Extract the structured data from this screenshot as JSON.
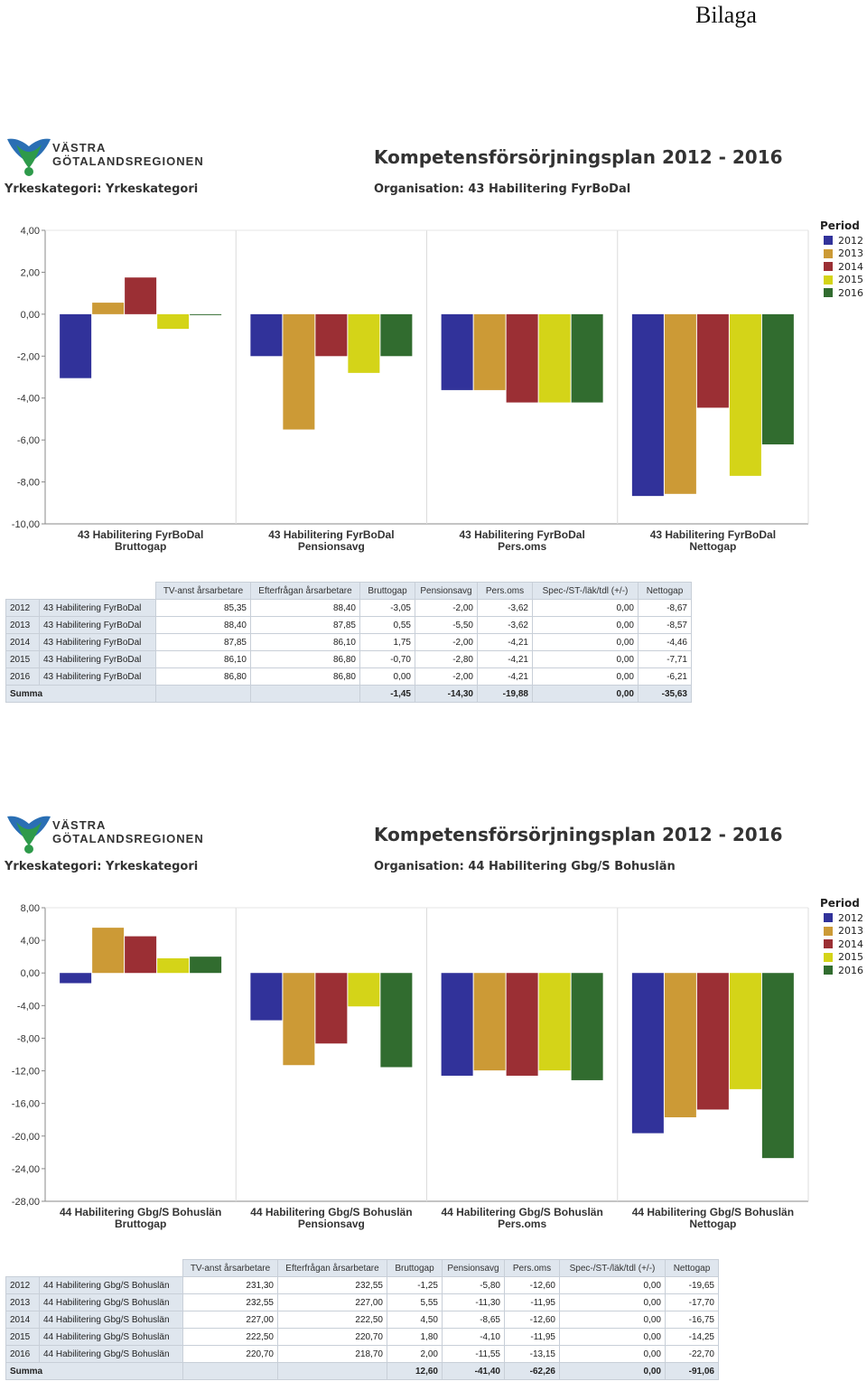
{
  "page": {
    "header": "Bilaga"
  },
  "legend": {
    "title": "Period",
    "items": [
      {
        "label": "2012",
        "color": "#31329a"
      },
      {
        "label": "2013",
        "color": "#cc9a36"
      },
      {
        "label": "2014",
        "color": "#9b2f34"
      },
      {
        "label": "2015",
        "color": "#d4d418"
      },
      {
        "label": "2016",
        "color": "#316c2f"
      }
    ]
  },
  "table_headers": [
    "TV-anst årsarbetare",
    "Efterfrågan årsarbetare",
    "Bruttogap",
    "Pensionsavg",
    "Pers.oms",
    "Spec-/ST-/läk/tdl (+/-)",
    "Nettogap"
  ],
  "sections": [
    {
      "logo_line1": "VÄSTRA",
      "logo_line2": "GÖTALANDSREGIONEN",
      "yrkeskategori": "Yrkeskategori: Yrkeskategori",
      "title": "Kompetensförsörjningsplan 2012 - 2016",
      "organisation": "Organisation: 43 Habilitering FyrBoDal",
      "chart_data": {
        "type": "bar",
        "categories": [
          {
            "line1": "43 Habilitering FyrBoDal",
            "line2": "Bruttogap"
          },
          {
            "line1": "43 Habilitering FyrBoDal",
            "line2": "Pensionsavg"
          },
          {
            "line1": "43 Habilitering FyrBoDal",
            "line2": "Pers.oms"
          },
          {
            "line1": "43 Habilitering FyrBoDal",
            "line2": "Nettogap"
          }
        ],
        "series": [
          {
            "name": "2012",
            "values": [
              -3.05,
              -2.0,
              -3.62,
              -8.67
            ]
          },
          {
            "name": "2013",
            "values": [
              0.55,
              -5.5,
              -3.62,
              -8.57
            ]
          },
          {
            "name": "2014",
            "values": [
              1.75,
              -2.0,
              -4.21,
              -4.46
            ]
          },
          {
            "name": "2015",
            "values": [
              -0.7,
              -2.8,
              -4.21,
              -7.71
            ]
          },
          {
            "name": "2016",
            "values": [
              0.0,
              -2.0,
              -4.21,
              -6.21
            ]
          }
        ],
        "ylim": [
          -10,
          4
        ],
        "yticks": [
          4,
          2,
          0,
          -2,
          -4,
          -6,
          -8,
          -10
        ],
        "ytick_labels": [
          "4,00",
          "2,00",
          "0,00",
          "-2,00",
          "-4,00",
          "-6,00",
          "-8,00",
          "-10,00"
        ],
        "grid": "vertical-separators",
        "legend_position": "right"
      },
      "table": {
        "rows": [
          [
            "2012",
            "43 Habilitering FyrBoDal",
            "85,35",
            "88,40",
            "-3,05",
            "-2,00",
            "-3,62",
            "0,00",
            "-8,67"
          ],
          [
            "2013",
            "43 Habilitering FyrBoDal",
            "88,40",
            "87,85",
            "0,55",
            "-5,50",
            "-3,62",
            "0,00",
            "-8,57"
          ],
          [
            "2014",
            "43 Habilitering FyrBoDal",
            "87,85",
            "86,10",
            "1,75",
            "-2,00",
            "-4,21",
            "0,00",
            "-4,46"
          ],
          [
            "2015",
            "43 Habilitering FyrBoDal",
            "86,10",
            "86,80",
            "-0,70",
            "-2,80",
            "-4,21",
            "0,00",
            "-7,71"
          ],
          [
            "2016",
            "43 Habilitering FyrBoDal",
            "86,80",
            "86,80",
            "0,00",
            "-2,00",
            "-4,21",
            "0,00",
            "-6,21"
          ]
        ],
        "sum_label": "Summa",
        "sum": [
          "",
          "",
          "-1,45",
          "-14,30",
          "-19,88",
          "0,00",
          "-35,63"
        ]
      }
    },
    {
      "logo_line1": "VÄSTRA",
      "logo_line2": "GÖTALANDSREGIONEN",
      "yrkeskategori": "Yrkeskategori: Yrkeskategori",
      "title": "Kompetensförsörjningsplan 2012 - 2016",
      "organisation": "Organisation: 44 Habilitering Gbg/S Bohuslän",
      "chart_data": {
        "type": "bar",
        "categories": [
          {
            "line1": "44 Habilitering Gbg/S Bohuslän",
            "line2": "Bruttogap"
          },
          {
            "line1": "44 Habilitering Gbg/S Bohuslän",
            "line2": "Pensionsavg"
          },
          {
            "line1": "44 Habilitering Gbg/S Bohuslän",
            "line2": "Pers.oms"
          },
          {
            "line1": "44 Habilitering Gbg/S Bohuslän",
            "line2": "Nettogap"
          }
        ],
        "series": [
          {
            "name": "2012",
            "values": [
              -1.25,
              -5.8,
              -12.6,
              -19.65
            ]
          },
          {
            "name": "2013",
            "values": [
              5.55,
              -11.3,
              -11.95,
              -17.7
            ]
          },
          {
            "name": "2014",
            "values": [
              4.5,
              -8.65,
              -12.6,
              -16.75
            ]
          },
          {
            "name": "2015",
            "values": [
              1.8,
              -4.1,
              -11.95,
              -14.25
            ]
          },
          {
            "name": "2016",
            "values": [
              2.0,
              -11.55,
              -13.15,
              -22.7
            ]
          }
        ],
        "ylim": [
          -28,
          8
        ],
        "yticks": [
          8,
          4,
          0,
          -4,
          -8,
          -12,
          -16,
          -20,
          -24,
          -28
        ],
        "ytick_labels": [
          "8,00",
          "4,00",
          "0,00",
          "-4,00",
          "-8,00",
          "-12,00",
          "-16,00",
          "-20,00",
          "-24,00",
          "-28,00"
        ],
        "grid": "vertical-separators",
        "legend_position": "right"
      },
      "table": {
        "rows": [
          [
            "2012",
            "44 Habilitering Gbg/S Bohuslän",
            "231,30",
            "232,55",
            "-1,25",
            "-5,80",
            "-12,60",
            "0,00",
            "-19,65"
          ],
          [
            "2013",
            "44 Habilitering Gbg/S Bohuslän",
            "232,55",
            "227,00",
            "5,55",
            "-11,30",
            "-11,95",
            "0,00",
            "-17,70"
          ],
          [
            "2014",
            "44 Habilitering Gbg/S Bohuslän",
            "227,00",
            "222,50",
            "4,50",
            "-8,65",
            "-12,60",
            "0,00",
            "-16,75"
          ],
          [
            "2015",
            "44 Habilitering Gbg/S Bohuslän",
            "222,50",
            "220,70",
            "1,80",
            "-4,10",
            "-11,95",
            "0,00",
            "-14,25"
          ],
          [
            "2016",
            "44 Habilitering Gbg/S Bohuslän",
            "220,70",
            "218,70",
            "2,00",
            "-11,55",
            "-13,15",
            "0,00",
            "-22,70"
          ]
        ],
        "sum_label": "Summa",
        "sum": [
          "",
          "",
          "12,60",
          "-41,40",
          "-62,26",
          "0,00",
          "-91,06"
        ]
      }
    }
  ]
}
